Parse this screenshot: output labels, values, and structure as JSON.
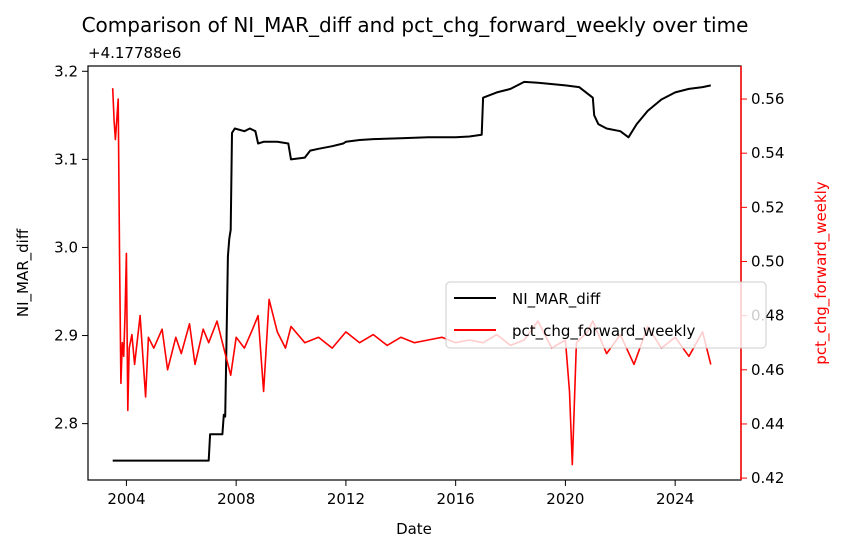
{
  "chart_data": {
    "type": "line",
    "title": "Comparison of NI_MAR_diff and pct_chg_forward_weekly over time",
    "xlabel": "Date",
    "ylabel_left": "NI_MAR_diff",
    "ylabel_right": "pct_chg_forward_weekly",
    "offset_text": "+4.17788e6",
    "x_ticks": [
      "2004",
      "2008",
      "2012",
      "2016",
      "2020",
      "2024"
    ],
    "y_left_ticks": [
      "2.8",
      "2.9",
      "3.0",
      "3.1",
      "3.2"
    ],
    "y_right_ticks": [
      "0.42",
      "0.44",
      "0.46",
      "0.48",
      "0.50",
      "0.52",
      "0.54",
      "0.56"
    ],
    "xlim": [
      2002.6,
      2026.4
    ],
    "ylim_left": [
      2.736,
      3.206
    ],
    "ylim_right": [
      0.4193,
      0.5722
    ],
    "legend_position": "center-right",
    "colors": {
      "left_series": "#000000",
      "right_series": "#ff0000"
    },
    "series": [
      {
        "name": "NI_MAR_diff",
        "axis": "left",
        "x": [
          2003.5,
          2006.0,
          2007.0,
          2007.05,
          2007.5,
          2007.55,
          2007.6,
          2007.65,
          2007.7,
          2007.75,
          2007.8,
          2007.85,
          2007.95,
          2008.3,
          2008.5,
          2008.7,
          2008.8,
          2009.0,
          2009.5,
          2009.9,
          2010.0,
          2010.5,
          2010.7,
          2011.0,
          2011.5,
          2011.9,
          2012.0,
          2012.5,
          2013.0,
          2014.0,
          2015.0,
          2016.0,
          2016.5,
          2016.95,
          2017.0,
          2017.5,
          2018.0,
          2018.5,
          2019.0,
          2020.0,
          2020.5,
          2021.0,
          2021.05,
          2021.2,
          2021.5,
          2022.0,
          2022.3,
          2022.6,
          2023.0,
          2023.5,
          2024.0,
          2024.5,
          2025.0,
          2025.3
        ],
        "values": [
          2.758,
          2.758,
          2.758,
          2.788,
          2.788,
          2.81,
          2.808,
          2.9,
          2.99,
          3.01,
          3.02,
          3.13,
          3.135,
          3.132,
          3.135,
          3.132,
          3.118,
          3.12,
          3.12,
          3.118,
          3.1,
          3.102,
          3.11,
          3.112,
          3.115,
          3.118,
          3.12,
          3.122,
          3.123,
          3.124,
          3.125,
          3.125,
          3.126,
          3.128,
          3.17,
          3.176,
          3.18,
          3.188,
          3.187,
          3.184,
          3.182,
          3.17,
          3.15,
          3.14,
          3.135,
          3.132,
          3.125,
          3.14,
          3.155,
          3.168,
          3.176,
          3.18,
          3.182,
          3.184
        ]
      },
      {
        "name": "pct_chg_forward_weekly",
        "axis": "right",
        "x": [
          2003.5,
          2003.55,
          2003.6,
          2003.7,
          2003.75,
          2003.8,
          2003.85,
          2003.9,
          2003.95,
          2004.0,
          2004.05,
          2004.1,
          2004.2,
          2004.3,
          2004.5,
          2004.7,
          2004.8,
          2005.0,
          2005.3,
          2005.5,
          2005.8,
          2006.0,
          2006.3,
          2006.5,
          2006.8,
          2007.0,
          2007.3,
          2007.5,
          2007.8,
          2008.0,
          2008.3,
          2008.6,
          2008.8,
          2009.0,
          2009.2,
          2009.5,
          2009.8,
          2010.0,
          2010.5,
          2011.0,
          2011.5,
          2012.0,
          2012.5,
          2013.0,
          2013.5,
          2014.0,
          2014.5,
          2015.0,
          2015.5,
          2016.0,
          2016.5,
          2017.0,
          2017.5,
          2018.0,
          2018.5,
          2019.0,
          2019.5,
          2020.0,
          2020.15,
          2020.25,
          2020.4,
          2020.8,
          2021.0,
          2021.5,
          2022.0,
          2022.5,
          2023.0,
          2023.5,
          2024.0,
          2024.5,
          2025.0,
          2025.3
        ],
        "values": [
          0.564,
          0.552,
          0.545,
          0.56,
          0.5,
          0.455,
          0.47,
          0.465,
          0.48,
          0.503,
          0.445,
          0.468,
          0.473,
          0.462,
          0.48,
          0.45,
          0.472,
          0.468,
          0.475,
          0.46,
          0.472,
          0.466,
          0.477,
          0.462,
          0.475,
          0.47,
          0.478,
          0.47,
          0.458,
          0.472,
          0.468,
          0.475,
          0.48,
          0.452,
          0.486,
          0.474,
          0.468,
          0.476,
          0.47,
          0.472,
          0.468,
          0.474,
          0.47,
          0.473,
          0.469,
          0.472,
          0.47,
          0.471,
          0.472,
          0.47,
          0.471,
          0.47,
          0.473,
          0.469,
          0.471,
          0.478,
          0.468,
          0.471,
          0.452,
          0.425,
          0.47,
          0.474,
          0.478,
          0.466,
          0.473,
          0.462,
          0.476,
          0.468,
          0.472,
          0.465,
          0.474,
          0.462
        ]
      }
    ]
  }
}
